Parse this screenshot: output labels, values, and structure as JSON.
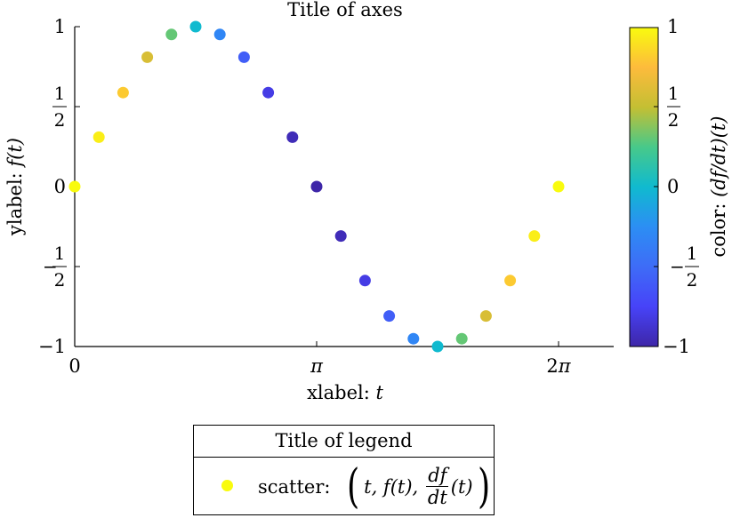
{
  "chart_data": {
    "type": "scatter",
    "title": "Title of axes",
    "xlabel": "xlabel: t",
    "ylabel": "ylabel: f(t)",
    "xlim": [
      0,
      7.1
    ],
    "ylim": [
      -1,
      1
    ],
    "x_ticks": [
      0,
      3.14159,
      6.28319
    ],
    "x_tick_labels": [
      "0",
      "π",
      "2π"
    ],
    "y_ticks": [
      -1,
      -0.5,
      0,
      0.5,
      1
    ],
    "y_tick_labels": [
      "−1",
      "−1/2",
      "0",
      "1/2",
      "1"
    ],
    "grid": false,
    "colorbar": {
      "label": "color: (df/dt)(t)",
      "clim": [
        -1,
        1
      ],
      "ticks": [
        -1,
        -0.5,
        0,
        0.5,
        1
      ],
      "tick_labels": [
        "−1",
        "−1/2",
        "0",
        "1/2",
        "1"
      ],
      "colormap": "parula"
    },
    "legend": {
      "title": "Title of legend",
      "position": "below axes",
      "entries": [
        {
          "label": "scatter: (t, f(t), df/dt(t))",
          "marker": "filled circle",
          "color": "#f9fb0e"
        }
      ]
    },
    "series": [
      {
        "name": "scatter",
        "x": [
          0,
          0.314159,
          0.628319,
          0.942478,
          1.256637,
          1.570796,
          1.884956,
          2.199115,
          2.513274,
          2.827433,
          3.141593,
          3.455752,
          3.769911,
          4.08407,
          4.39823,
          4.712389,
          5.026548,
          5.340708,
          5.654867,
          5.969026,
          6.283185
        ],
        "y": [
          0,
          0.309,
          0.588,
          0.809,
          0.951,
          1,
          0.951,
          0.809,
          0.588,
          0.309,
          0,
          -0.309,
          -0.588,
          -0.809,
          -0.951,
          -1,
          -0.951,
          -0.809,
          -0.588,
          -0.309,
          0
        ],
        "c": [
          1,
          0.951,
          0.809,
          0.588,
          0.309,
          0,
          -0.309,
          -0.588,
          -0.809,
          -0.951,
          -1,
          -0.951,
          -0.809,
          -0.588,
          -0.309,
          0,
          0.309,
          0.588,
          0.809,
          0.951,
          1
        ]
      }
    ]
  },
  "labels": {
    "title": "Title of axes",
    "xlabel_prefix": "xlabel: ",
    "xlabel_var": "t",
    "ylabel_prefix": "ylabel: ",
    "ylabel_var": "f(t)",
    "cbar_prefix": "color: ",
    "cbar_var": "(df/dt)(t)",
    "legend_title": "Title of legend",
    "legend_prefix": "scatter:",
    "legend_t": "t, f(t),",
    "legend_num": "df",
    "legend_den": "dt",
    "legend_tail": "(t)",
    "legend_lparen": "(",
    "legend_rparen": ")"
  }
}
